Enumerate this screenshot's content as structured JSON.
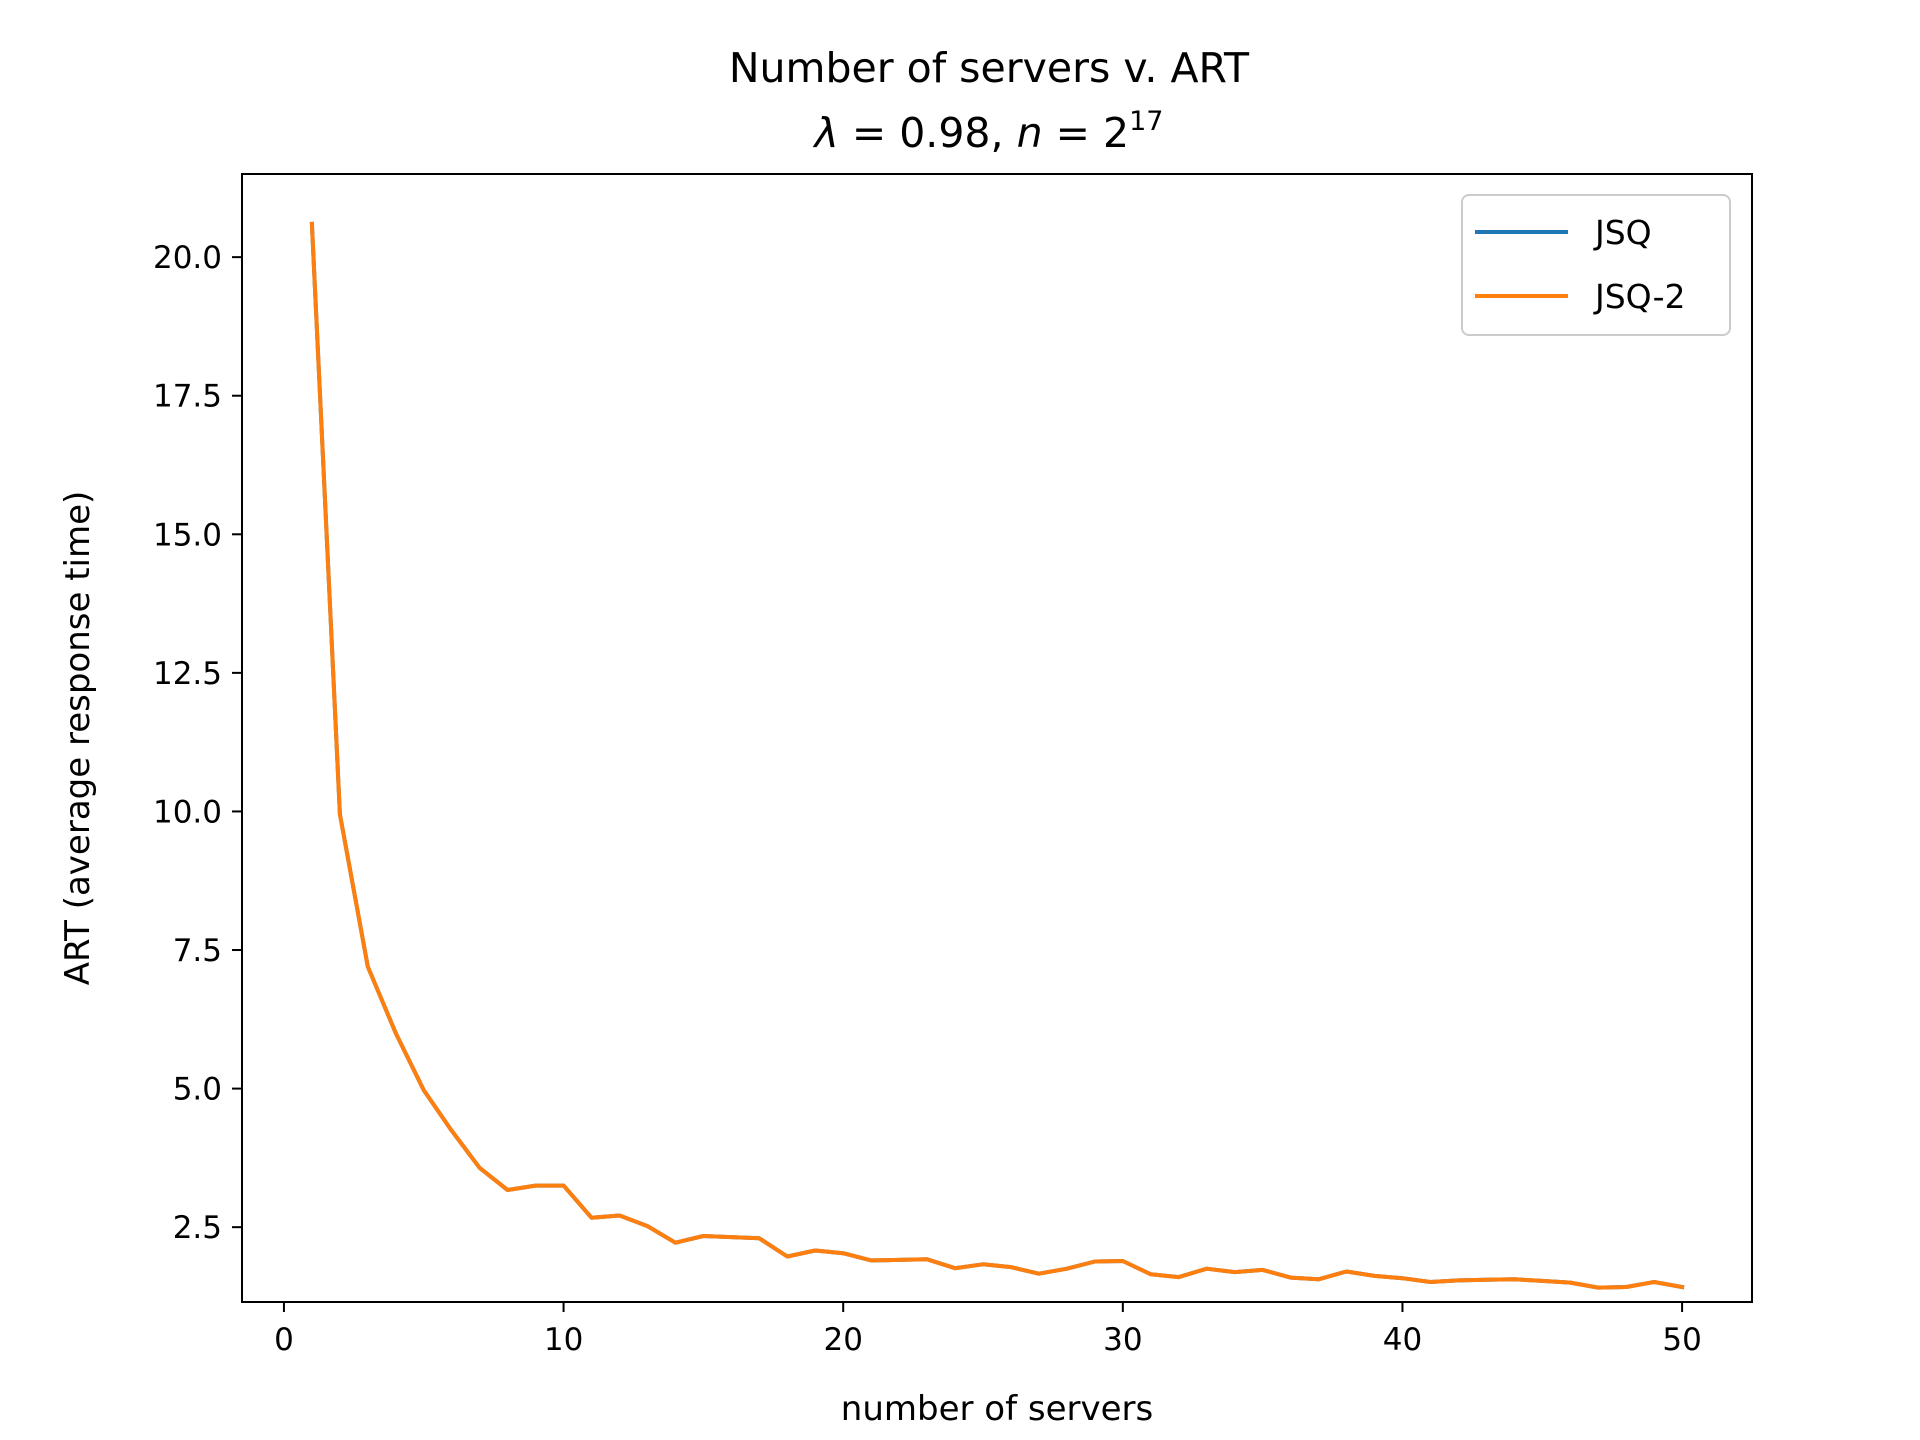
{
  "chart_data": {
    "type": "line",
    "title": "Number of servers v. ART",
    "subtitle": {
      "lambda_symbol": "λ",
      "lambda_value": "0.98",
      "n_symbol": "n",
      "n_base": "2",
      "n_exponent": "17"
    },
    "xlabel": "number of servers",
    "ylabel": "ART (average response time)",
    "xlim": [
      -1.5,
      52.5
    ],
    "ylim": [
      1.15,
      21.5
    ],
    "xticks": [
      0,
      10,
      20,
      30,
      40,
      50
    ],
    "xtick_labels": [
      "0",
      "10",
      "20",
      "30",
      "40",
      "50"
    ],
    "yticks": [
      2.5,
      5.0,
      7.5,
      10.0,
      12.5,
      15.0,
      17.5,
      20.0
    ],
    "ytick_labels": [
      "2.5",
      "5.0",
      "7.5",
      "10.0",
      "12.5",
      "15.0",
      "17.5",
      "20.0"
    ],
    "grid": false,
    "legend_position": "top-right",
    "x": [
      1,
      2,
      3,
      4,
      5,
      6,
      7,
      8,
      9,
      10,
      11,
      12,
      13,
      14,
      15,
      16,
      17,
      18,
      19,
      20,
      21,
      22,
      23,
      24,
      25,
      26,
      27,
      28,
      29,
      30,
      31,
      32,
      33,
      34,
      35,
      36,
      37,
      38,
      39,
      40,
      41,
      42,
      43,
      44,
      45,
      46,
      47,
      48,
      49,
      50
    ],
    "series": [
      {
        "name": "JSQ",
        "color": "#1f77b4",
        "values": [
          20.6,
          9.95,
          7.2,
          6.0,
          4.97,
          4.24,
          3.57,
          3.17,
          3.25,
          3.25,
          2.67,
          2.71,
          2.52,
          2.22,
          2.34,
          2.32,
          2.3,
          1.97,
          2.08,
          2.03,
          1.9,
          1.91,
          1.92,
          1.76,
          1.83,
          1.78,
          1.66,
          1.75,
          1.88,
          1.89,
          1.65,
          1.6,
          1.75,
          1.69,
          1.73,
          1.59,
          1.56,
          1.7,
          1.62,
          1.58,
          1.51,
          1.54,
          1.55,
          1.56,
          1.53,
          1.5,
          1.41,
          1.42,
          1.51,
          1.42
        ]
      },
      {
        "name": "JSQ-2",
        "color": "#ff7f0e",
        "values": [
          20.6,
          9.95,
          7.2,
          6.0,
          4.97,
          4.24,
          3.57,
          3.17,
          3.25,
          3.25,
          2.67,
          2.71,
          2.52,
          2.22,
          2.34,
          2.32,
          2.3,
          1.97,
          2.08,
          2.03,
          1.9,
          1.91,
          1.92,
          1.76,
          1.83,
          1.78,
          1.66,
          1.75,
          1.88,
          1.89,
          1.65,
          1.6,
          1.75,
          1.69,
          1.73,
          1.59,
          1.56,
          1.7,
          1.62,
          1.58,
          1.51,
          1.54,
          1.55,
          1.56,
          1.53,
          1.5,
          1.41,
          1.42,
          1.51,
          1.42
        ]
      }
    ]
  }
}
